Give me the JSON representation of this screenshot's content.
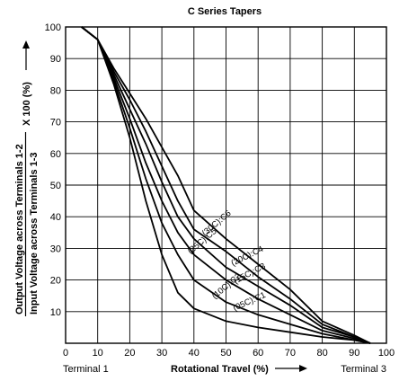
{
  "chart_data": {
    "type": "line",
    "title": "C Series Tapers",
    "xlabel": "Rotational Travel (%)",
    "ylabel_numerator": "Output Voltage across Terminals 1-2",
    "ylabel_denominator": "Input Voltage across Terminals 1-3",
    "ylabel_suffix": "X 100 (%)",
    "terminal_left": "Terminal 1",
    "terminal_right": "Terminal 3",
    "xlim": [
      0,
      100
    ],
    "ylim": [
      0,
      100
    ],
    "xticks": [
      "0",
      "10",
      "20",
      "30",
      "40",
      "50",
      "60",
      "70",
      "80",
      "90",
      "100"
    ],
    "yticks": [
      "10",
      "20",
      "30",
      "40",
      "50",
      "60",
      "70",
      "80",
      "90",
      "100"
    ],
    "grid": true,
    "series": [
      {
        "name": "(05C):C1",
        "x": [
          5,
          10,
          15,
          20,
          25,
          30,
          35,
          40,
          50,
          60,
          70,
          80,
          90,
          95
        ],
        "y": [
          100,
          96,
          82,
          65,
          45,
          28,
          16,
          11,
          7,
          5,
          3.5,
          2,
          1,
          0
        ]
      },
      {
        "name": "(10C):C2",
        "x": [
          5,
          10,
          15,
          20,
          25,
          30,
          35,
          40,
          50,
          60,
          70,
          80,
          90,
          95
        ],
        "y": [
          100,
          96,
          83,
          68,
          52,
          38,
          28,
          20,
          13,
          9,
          6,
          3,
          1,
          0
        ]
      },
      {
        "name": "(15C):C3",
        "x": [
          5,
          10,
          15,
          20,
          25,
          30,
          35,
          40,
          50,
          60,
          70,
          80,
          90,
          95
        ],
        "y": [
          100,
          96,
          84,
          71,
          57,
          45,
          35,
          28,
          20,
          14,
          9,
          4,
          1.5,
          0
        ]
      },
      {
        "name": "(20C):C4",
        "x": [
          5,
          10,
          15,
          20,
          25,
          30,
          35,
          40,
          50,
          60,
          70,
          80,
          90,
          95
        ],
        "y": [
          100,
          96,
          85,
          74,
          63,
          51,
          40,
          33,
          24,
          18,
          12,
          5,
          2,
          0
        ]
      },
      {
        "name": "(25C):C5",
        "x": [
          5,
          10,
          15,
          20,
          25,
          30,
          35,
          40,
          50,
          60,
          70,
          80,
          90,
          95
        ],
        "y": [
          100,
          96,
          86,
          77,
          67,
          56,
          45,
          36,
          29,
          21,
          14,
          6,
          2,
          0
        ]
      },
      {
        "name": "(30C):C6",
        "x": [
          5,
          10,
          15,
          20,
          25,
          30,
          35,
          40,
          50,
          60,
          70,
          80,
          90,
          95
        ],
        "y": [
          100,
          96,
          87,
          79,
          71,
          62,
          53,
          42,
          33,
          25,
          17,
          7,
          2.5,
          0
        ]
      }
    ]
  }
}
